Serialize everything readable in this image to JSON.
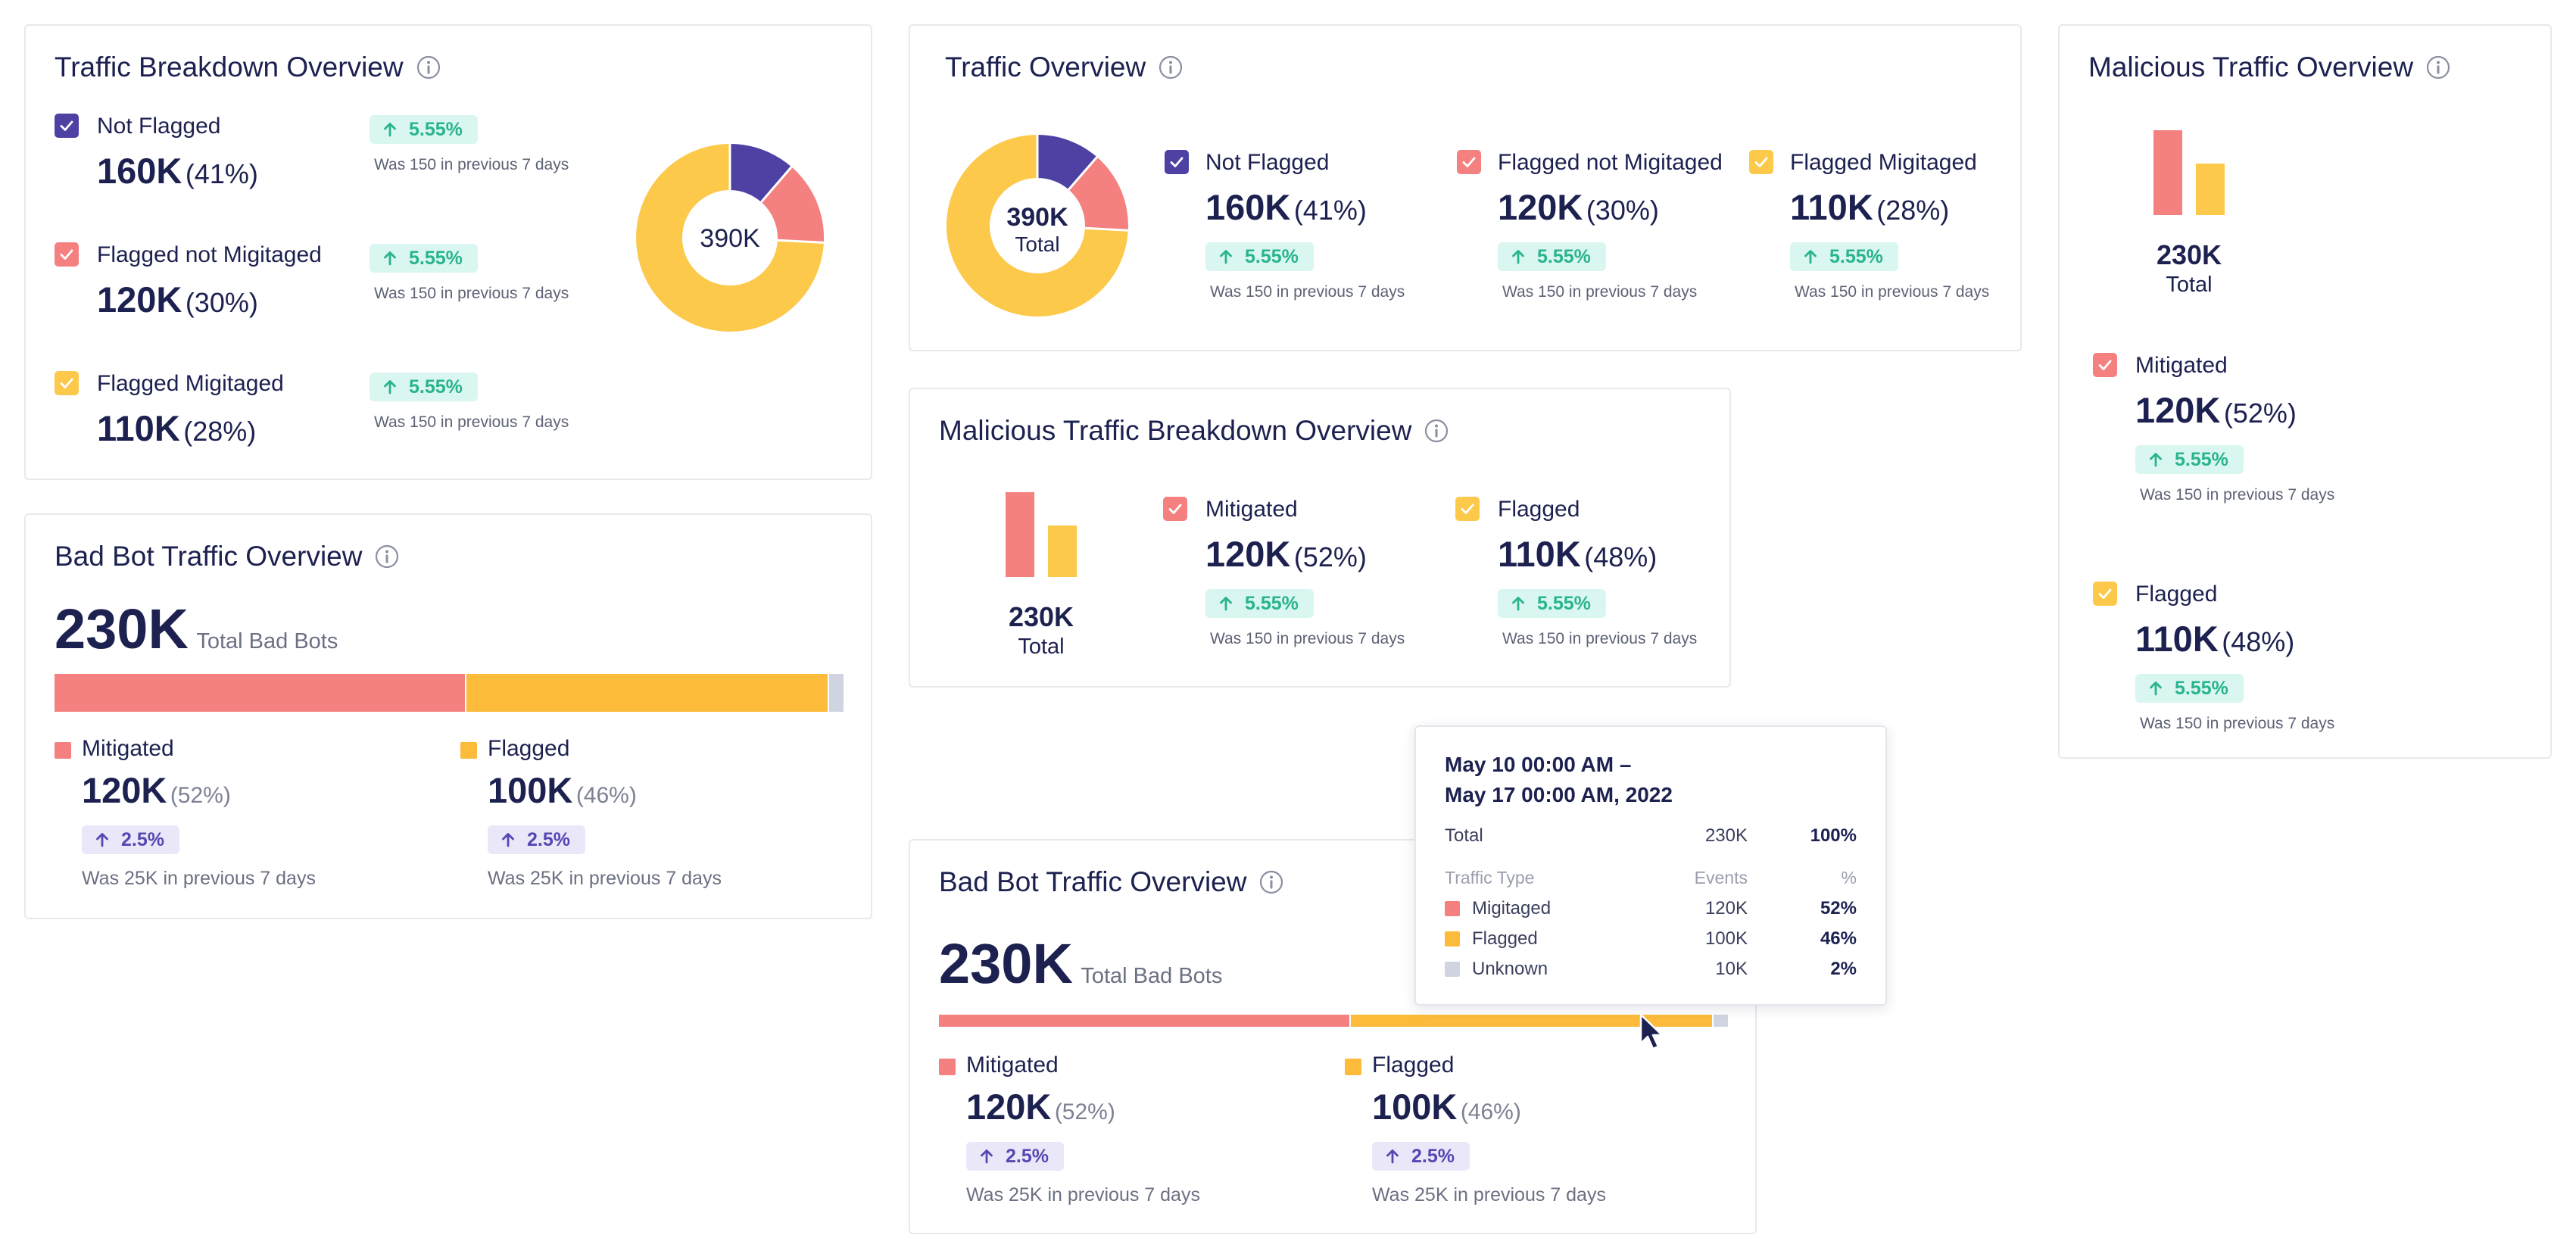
{
  "up_badge": "5.55%",
  "was_150": "Was 150 in previous 7 days",
  "bot_badge": "2.5%",
  "was_25k": "Was 25K in previous 7 days",
  "colors": {
    "purple": "#4d41a3",
    "red": "#f48080",
    "yellow": "#fcc94b",
    "orange": "#fdbb3b",
    "grey": "#d0d4e0",
    "green": "#28b48e"
  },
  "traffic_breakdown": {
    "title": "Traffic Breakdown Overview",
    "center": "390K",
    "items": [
      {
        "label": "Not Flagged",
        "value": "160K",
        "pct": "(41%)"
      },
      {
        "label": "Flagged not Migitaged",
        "value": "120K",
        "pct": "(30%)"
      },
      {
        "label": "Flagged Migitaged",
        "value": "110K",
        "pct": "(28%)"
      }
    ]
  },
  "traffic_overview": {
    "title": "Traffic Overview",
    "center_value": "390K",
    "center_label": "Total",
    "items": [
      {
        "label": "Not Flagged",
        "value": "160K",
        "pct": "(41%)"
      },
      {
        "label": "Flagged not Migitaged",
        "value": "120K",
        "pct": "(30%)"
      },
      {
        "label": "Flagged Migitaged",
        "value": "110K",
        "pct": "(28%)"
      }
    ]
  },
  "malicious_overview": {
    "title": "Malicious Traffic Overview",
    "total_value": "230K",
    "total_label": "Total",
    "items": [
      {
        "label": "Mitigated",
        "value": "120K",
        "pct": "(52%)"
      },
      {
        "label": "Flagged",
        "value": "110K",
        "pct": "(48%)"
      }
    ]
  },
  "malicious_breakdown": {
    "title": "Malicious Traffic Breakdown Overview",
    "total_value": "230K",
    "total_label": "Total",
    "items": [
      {
        "label": "Mitigated",
        "value": "120K",
        "pct": "(52%)"
      },
      {
        "label": "Flagged",
        "value": "110K",
        "pct": "(48%)"
      }
    ]
  },
  "bad_bot_1": {
    "title": "Bad Bot Traffic Overview",
    "total_value": "230K",
    "total_label": "Total Bad Bots",
    "bar_fractions": {
      "mitigated": 0.52,
      "flagged": 0.46,
      "unknown": 0.02
    },
    "items": [
      {
        "label": "Mitigated",
        "value": "120K",
        "pct": "(52%)"
      },
      {
        "label": "Flagged",
        "value": "100K",
        "pct": "(46%)"
      }
    ]
  },
  "bad_bot_2": {
    "title": "Bad Bot Traffic Overview",
    "total_value": "230K",
    "total_label": "Total Bad Bots",
    "bar_fractions": {
      "mitigated": 0.52,
      "flagged": 0.46,
      "unknown": 0.02
    },
    "items": [
      {
        "label": "Mitigated",
        "value": "120K",
        "pct": "(52%)"
      },
      {
        "label": "Flagged",
        "value": "100K",
        "pct": "(46%)"
      }
    ]
  },
  "tooltip": {
    "date_line1": "May 10 00:00 AM –",
    "date_line2": "May 17 00:00 AM, 2022",
    "total_label": "Total",
    "total_events": "230K",
    "total_pct": "100%",
    "col_type": "Traffic Type",
    "col_events": "Events",
    "col_pct": "%",
    "rows": [
      {
        "label": "Migitaged",
        "events": "120K",
        "pct": "52%"
      },
      {
        "label": "Flagged",
        "events": "100K",
        "pct": "46%"
      },
      {
        "label": "Unknown",
        "events": "10K",
        "pct": "2%"
      }
    ]
  }
}
